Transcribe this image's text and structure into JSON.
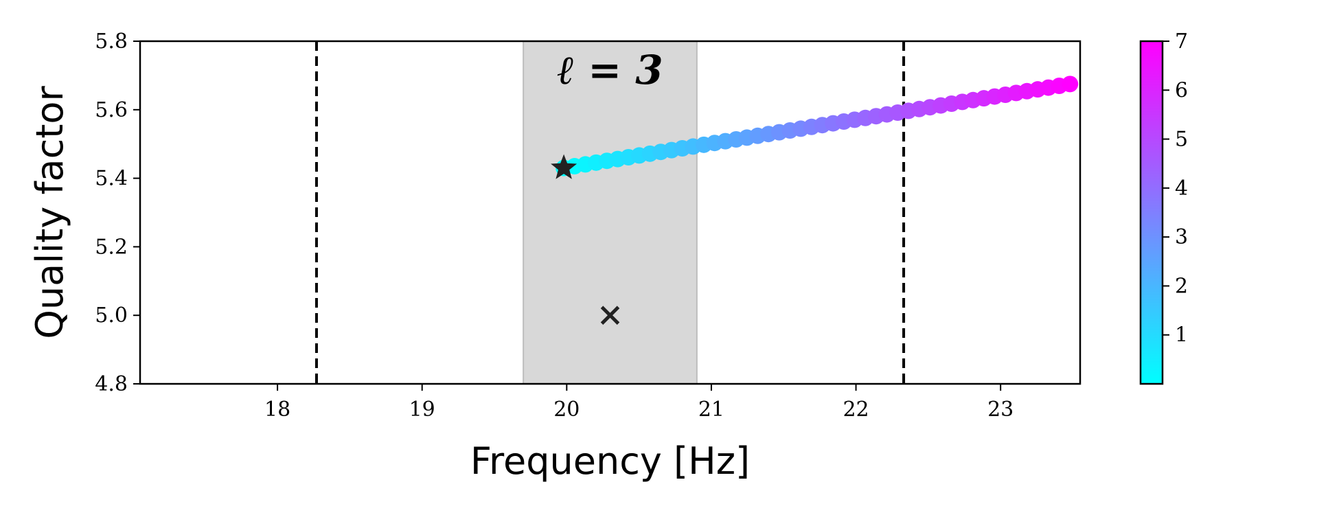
{
  "chart_data": {
    "type": "scatter",
    "title": "",
    "xlabel": "Frequency [Hz]",
    "ylabel": "Quality factor",
    "xlim": [
      17.05,
      23.55
    ],
    "ylim": [
      4.8,
      5.8
    ],
    "x_ticks": [
      18,
      19,
      20,
      21,
      22,
      23
    ],
    "x_tick_labels": [
      "18",
      "19",
      "20",
      "21",
      "22",
      "23"
    ],
    "y_ticks": [
      4.8,
      5.0,
      5.2,
      5.4,
      5.6,
      5.8
    ],
    "y_tick_labels": [
      "4.8",
      "5.0",
      "5.2",
      "5.4",
      "5.6",
      "5.8"
    ],
    "grid": false,
    "annotation": "ℓ = 3",
    "shaded_band_x": [
      19.7,
      20.9
    ],
    "vertical_dashed_lines_x": [
      18.27,
      22.33
    ],
    "track": {
      "x_start": 19.98,
      "y_start": 5.43,
      "x_end": 23.48,
      "y_end": 5.675,
      "color_start": 0.0,
      "color_end": 7.0,
      "point_count": 48
    },
    "star_marker": {
      "x": 19.98,
      "y": 5.43
    },
    "x_marker": {
      "x": 20.3,
      "y": 5.0
    },
    "colorbar": {
      "ticks": [
        1,
        2,
        3,
        4,
        5,
        6,
        7
      ],
      "tick_labels": [
        "1",
        "2",
        "3",
        "4",
        "5",
        "6",
        "7"
      ],
      "min": 0,
      "max": 7,
      "colormap": [
        "#00ffff",
        "#ff00ff"
      ]
    }
  }
}
